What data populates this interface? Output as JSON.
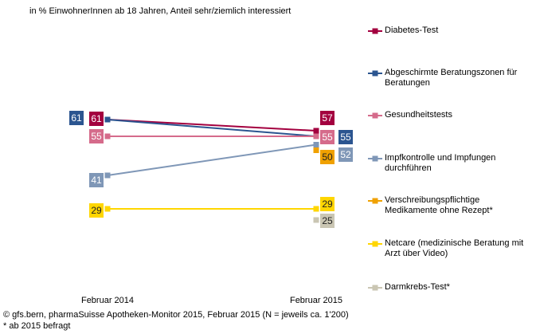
{
  "chart_data": {
    "type": "line",
    "subtitle": "in % EinwohnerInnen ab 18 Jahren, Anteil sehr/ziemlich interessiert",
    "categories": [
      "Februar 2014",
      "Februar 2015"
    ],
    "series": [
      {
        "name": "Diabetes-Test",
        "color": "#a3003f",
        "values": [
          61,
          57
        ]
      },
      {
        "name": "Abgeschirmte Beratungszonen für Beratungen",
        "color": "#2b5590",
        "values": [
          61,
          55
        ]
      },
      {
        "name": "Gesundheitstests",
        "color": "#d56b8b",
        "values": [
          55,
          55
        ]
      },
      {
        "name": "Impfkontrolle und Impfungen durchführen",
        "color": "#7f97b7",
        "values": [
          41,
          52
        ]
      },
      {
        "name": "Verschreibungspflichtige Medikamente ohne Rezept*",
        "color": "#f0a100",
        "values": [
          null,
          50
        ]
      },
      {
        "name": "Netcare (medizinische Beratung mit Arzt über Video)",
        "color": "#ffd600",
        "values": [
          29,
          29
        ]
      },
      {
        "name": "Darmkrebs-Test*",
        "color": "#cac6b3",
        "values": [
          null,
          25
        ]
      }
    ],
    "source": "© gfs.bern, pharmaSuisse Apotheken-Monitor 2015, Februar 2015 (N = jeweils ca. 1'200)",
    "footnote": "* ab 2015 befragt"
  }
}
